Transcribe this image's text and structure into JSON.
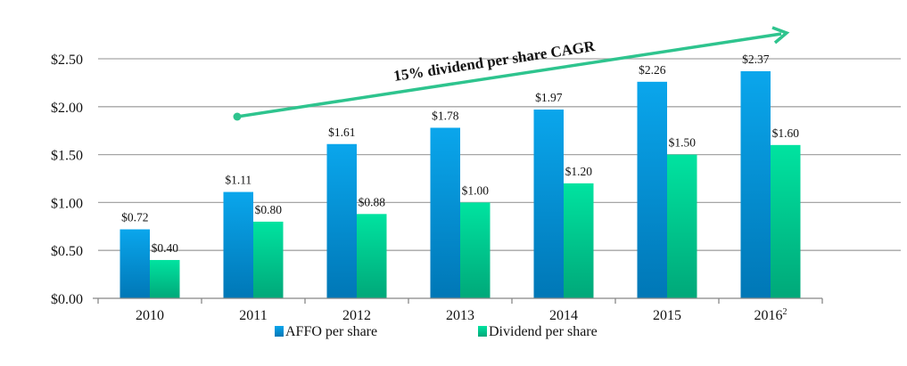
{
  "chart_data": {
    "type": "bar",
    "title": "",
    "xlabel": "",
    "ylabel": "",
    "ylim": [
      0,
      2.5
    ],
    "yticks": [
      "$0.00",
      "$0.50",
      "$1.00",
      "$1.50",
      "$2.00",
      "$2.50"
    ],
    "ytick_values": [
      0,
      0.5,
      1.0,
      1.5,
      2.0,
      2.5
    ],
    "grid": true,
    "categories": [
      "2010",
      "2011",
      "2012",
      "2013",
      "2014",
      "2015",
      "2016"
    ],
    "category_superscripts": [
      "",
      "",
      "",
      "",
      "",
      "",
      "2"
    ],
    "series": [
      {
        "name": "AFFO per share",
        "values": [
          0.72,
          1.11,
          1.61,
          1.78,
          1.97,
          2.26,
          2.37
        ],
        "labels": [
          "$0.72",
          "$1.11",
          "$1.61",
          "$1.78",
          "$1.97",
          "$2.26",
          "$2.37"
        ],
        "color_top": "#0aa6ec",
        "color_bottom": "#0077b6"
      },
      {
        "name": "Dividend per share",
        "values": [
          0.4,
          0.8,
          0.88,
          1.0,
          1.2,
          1.5,
          1.6
        ],
        "labels": [
          "$0.40",
          "$0.80",
          "$0.88",
          "$1.00",
          "$1.20",
          "$1.50",
          "$1.60"
        ],
        "color_top": "#00e3a0",
        "color_bottom": "#00a879"
      }
    ],
    "legend_position": "bottom",
    "annotation": {
      "text": "15% dividend per share CAGR",
      "color": "#2ec48e"
    }
  }
}
